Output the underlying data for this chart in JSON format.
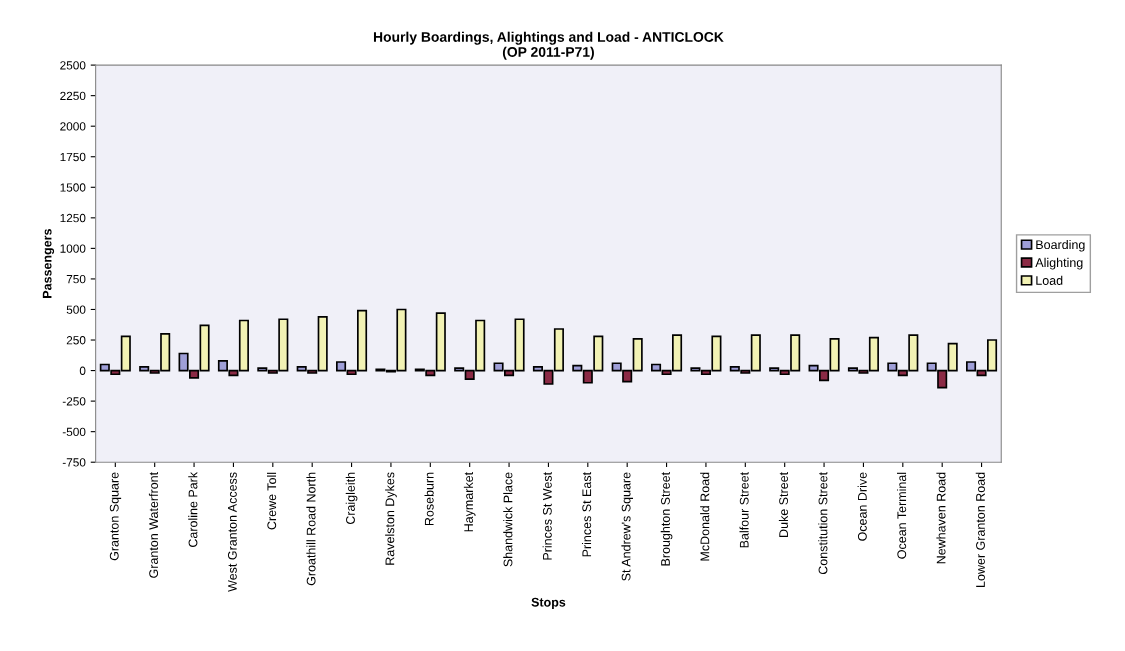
{
  "chart_data": {
    "type": "bar",
    "title": "Hourly Boardings, Alightings and Load - ANTICLOCK\n(OP 2011-P71)",
    "xlabel": "Stops",
    "ylabel": "Passengers",
    "categories": [
      "Granton Square",
      "Granton Waterfront",
      "Caroline Park",
      "West Granton Access",
      "Crewe Toll",
      "Groathill Road North",
      "Craigleith",
      "Ravelston Dykes",
      "Roseburn",
      "Haymarket",
      "Shandwick Place",
      "Princes St West",
      "Princes St East",
      "St Andrew's Square",
      "Broughton Street",
      "McDonald Road",
      "Balfour Street",
      "Duke Street",
      "Constitution Street",
      "Ocean Drive",
      "Ocean Terminal",
      "Newhaven Road",
      "Lower Granton Road"
    ],
    "series": [
      {
        "name": "Boarding",
        "color": "#9f9fd8",
        "values": [
          50,
          30,
          140,
          80,
          20,
          30,
          70,
          10,
          10,
          20,
          60,
          30,
          40,
          60,
          50,
          20,
          30,
          20,
          40,
          20,
          60,
          60,
          70
        ]
      },
      {
        "name": "Alighting",
        "color": "#8b2a45",
        "values": [
          -30,
          -20,
          -60,
          -40,
          -20,
          -20,
          -30,
          -10,
          -40,
          -70,
          -40,
          -110,
          -100,
          -90,
          -30,
          -30,
          -20,
          -30,
          -80,
          -20,
          -40,
          -140,
          -40
        ]
      },
      {
        "name": "Load",
        "color": "#f2f2b4",
        "values": [
          280,
          300,
          370,
          410,
          420,
          440,
          490,
          500,
          470,
          410,
          420,
          340,
          280,
          260,
          290,
          280,
          290,
          290,
          260,
          270,
          290,
          220,
          250
        ]
      }
    ],
    "ylim": [
      -750,
      2500
    ],
    "yticks": [
      -750,
      -500,
      -250,
      0,
      250,
      500,
      750,
      1000,
      1250,
      1500,
      1750,
      2000,
      2250,
      2500
    ],
    "grid": false,
    "legend": "right"
  }
}
